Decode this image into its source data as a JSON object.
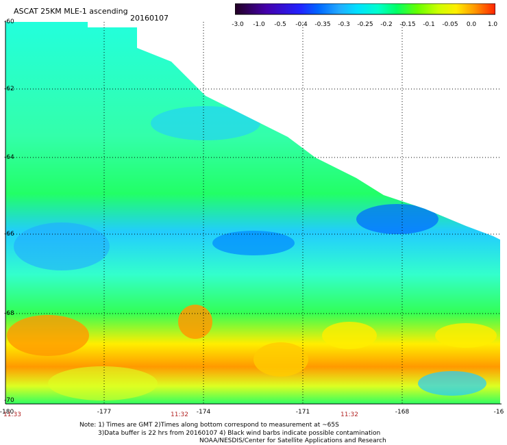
{
  "header": {
    "title": "ASCAT 25KM MLE-1 ascending",
    "date": "20160107"
  },
  "colorbar": {
    "labels": [
      "-3.0",
      "-1.0",
      "-0.5",
      "-0.4",
      "-0.35",
      "-0.3",
      "-0.25",
      "-0.2",
      "-0.15",
      "-0.1",
      "-0.05",
      "0.0",
      "1.0"
    ],
    "colors": [
      "#220022",
      "#4400aa",
      "#2222ff",
      "#0066ff",
      "#22aaff",
      "#00e0ff",
      "#00ffcc",
      "#00ff66",
      "#66ff00",
      "#ccff00",
      "#ffee00",
      "#ff9900",
      "#ff2200"
    ]
  },
  "axes": {
    "y_ticks": [
      "-60",
      "-62",
      "-64",
      "-66",
      "-68",
      "-70"
    ],
    "x_ticks": [
      "-180",
      "-177",
      "-174",
      "-171",
      "-168",
      "-16"
    ],
    "times": [
      "11:33",
      "11:32",
      "11:32"
    ]
  },
  "notes": {
    "line1": "Note: 1) Times are GMT 2)Times along bottom correspond to measurement at ~65S",
    "line2": "3)Data buffer is 22 hrs from 20160107 4) Black wind barbs indicate possible contamination",
    "line3": "NOAA/NESDIS/Center for Satellite Applications and Research"
  }
}
